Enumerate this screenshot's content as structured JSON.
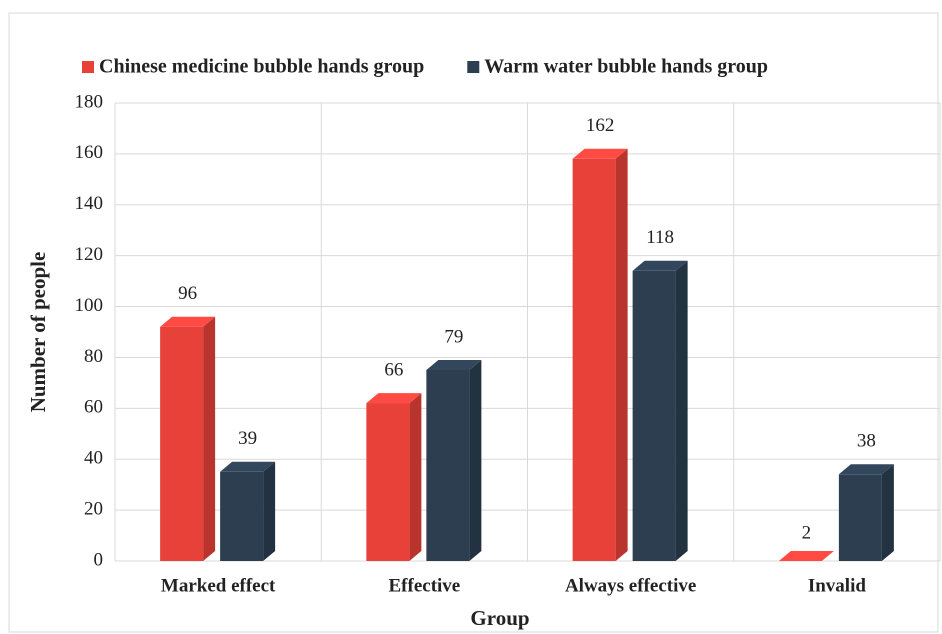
{
  "chart_data": {
    "type": "bar3d",
    "categories": [
      "Marked effect",
      "Effective",
      "Always effective",
      "Invalid"
    ],
    "series": [
      {
        "name": "Chinese medicine bubble hands group",
        "color": "#e8413a",
        "values": [
          96,
          66,
          162,
          2
        ]
      },
      {
        "name": "Warm water bubble hands group",
        "color": "#2c3e50",
        "values": [
          39,
          79,
          118,
          38
        ]
      }
    ],
    "ylabel": "Number of people",
    "xlabel": "Group",
    "ylim": [
      0,
      180
    ],
    "yticks": [
      0,
      20,
      40,
      60,
      80,
      100,
      120,
      140,
      160,
      180
    ],
    "grid": true,
    "legend": "top"
  }
}
